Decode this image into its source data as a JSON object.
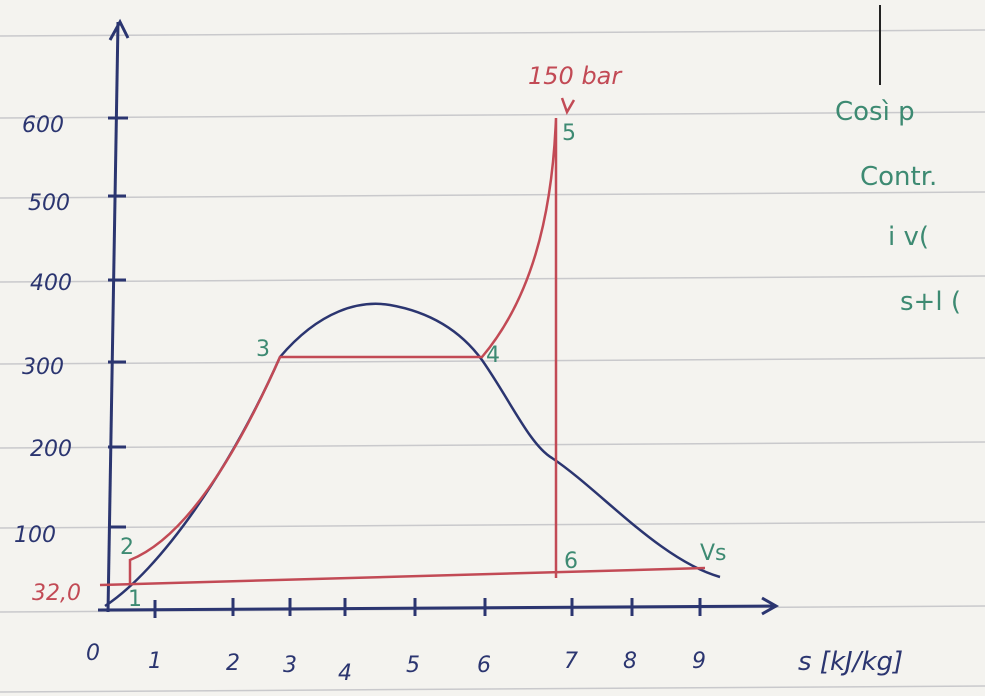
{
  "y_axis": {
    "ticks": [
      "600",
      "500",
      "400",
      "300",
      "200",
      "100"
    ],
    "low_label": "32,0"
  },
  "x_axis": {
    "ticks": [
      "0",
      "1",
      "2",
      "3",
      "4",
      "5",
      "6",
      "7",
      "8",
      "9"
    ],
    "label": "s [kJ/kg]"
  },
  "pressure_label": "150 bar",
  "points": [
    "1",
    "2",
    "3",
    "4",
    "5",
    "6"
  ],
  "vapor_label": "Vs",
  "margin_notes": [
    "Così p",
    "Contr.",
    "i v(",
    "s+l ("
  ]
}
